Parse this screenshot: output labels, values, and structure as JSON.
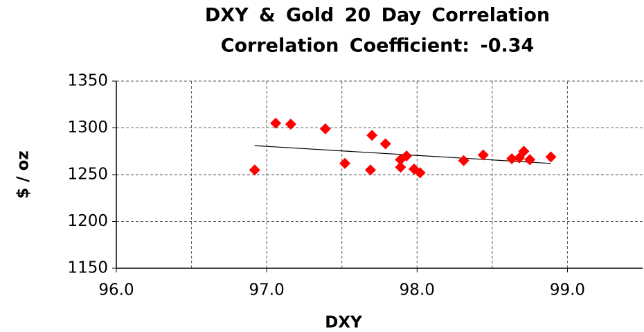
{
  "chart_data": {
    "type": "scatter",
    "title": "DXY & Gold 20 Day Correlation",
    "subtitle": "Correlation Coefficient: -0.34",
    "x_label": "DXY",
    "y_label": "$ / oz",
    "series": [
      {
        "color": "#ff0000",
        "x": [
          96.92,
          97.06,
          97.16,
          97.39,
          97.52,
          97.69,
          97.7,
          97.79,
          97.89,
          97.89,
          97.93,
          97.98,
          98.02,
          98.31,
          98.44,
          98.63,
          98.68,
          98.71,
          98.75,
          98.89
        ],
        "values": [
          1255,
          1305,
          1304,
          1299,
          1262,
          1255,
          1292,
          1283,
          1258,
          1266,
          1270,
          1256,
          1252,
          1265,
          1271,
          1267,
          1268,
          1275,
          1266,
          1269
        ]
      }
    ],
    "trendline": {
      "color": "#000000",
      "x": [
        96.92,
        98.89
      ],
      "values": [
        1281,
        1262
      ]
    },
    "xlim": [
      96,
      99.5
    ],
    "xticks": [
      {
        "value": 96,
        "label": "96.0"
      },
      {
        "value": 97,
        "label": "97.0"
      },
      {
        "value": 98,
        "label": "98.0"
      },
      {
        "value": 99,
        "label": "99.0"
      }
    ],
    "xgrid": [
      96.5,
      97,
      97.5,
      98,
      98.5,
      99
    ],
    "ylim": [
      1150,
      1350
    ],
    "yticks": [
      1150,
      1200,
      1250,
      1300,
      1350
    ],
    "grid": true
  }
}
